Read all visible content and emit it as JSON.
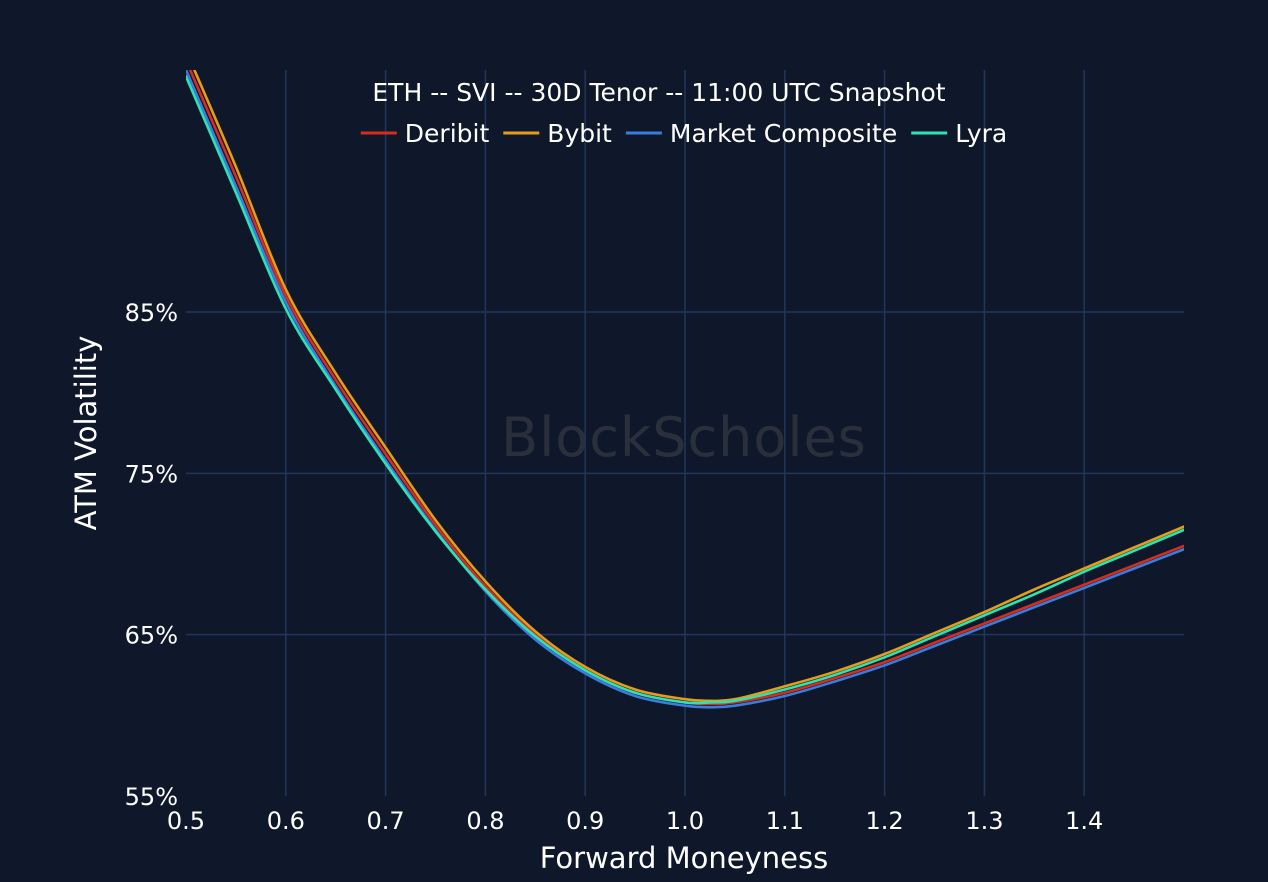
{
  "chart_data": {
    "type": "line",
    "title": "ETH -- SVI -- 30D Tenor -- 11:00 UTC Snapshot",
    "xlabel": "Forward Moneyness",
    "ylabel": "ATM Volatility",
    "watermark": "BlockScholes",
    "xlim": [
      0.5,
      1.5
    ],
    "ylim": [
      55,
      100
    ],
    "xticks": [
      0.5,
      0.6,
      0.7,
      0.8,
      0.9,
      1.0,
      1.1,
      1.2,
      1.3,
      1.4
    ],
    "xtick_labels": [
      "0.5",
      "0.6",
      "0.7",
      "0.8",
      "0.9",
      "1.0",
      "1.1",
      "1.2",
      "1.3",
      "1.4"
    ],
    "yticks": [
      55,
      65,
      75,
      85
    ],
    "ytick_labels": [
      "55%",
      "65%",
      "75%",
      "85%"
    ],
    "grid": true,
    "legend_position": "top-center",
    "x": [
      0.5,
      0.55,
      0.6,
      0.65,
      0.7,
      0.75,
      0.8,
      0.85,
      0.9,
      0.95,
      1.0,
      1.025,
      1.05,
      1.1,
      1.15,
      1.2,
      1.25,
      1.3,
      1.35,
      1.4,
      1.45,
      1.5
    ],
    "series": [
      {
        "name": "Deribit",
        "color": "#d62d1c",
        "values": [
          100.6,
          93.4,
          86.0,
          80.8,
          76.2,
          71.8,
          68.0,
          65.0,
          62.8,
          61.4,
          60.8,
          60.7,
          60.8,
          61.4,
          62.3,
          63.3,
          64.5,
          65.7,
          66.9,
          68.1,
          69.3,
          70.5
        ]
      },
      {
        "name": "Bybit",
        "color": "#e39d1a",
        "values": [
          101.2,
          94.0,
          86.4,
          81.2,
          76.6,
          72.1,
          68.3,
          65.2,
          63.0,
          61.6,
          61.0,
          60.9,
          61.0,
          61.8,
          62.7,
          63.8,
          65.1,
          66.4,
          67.8,
          69.1,
          70.4,
          71.7
        ]
      },
      {
        "name": "Market Composite",
        "color": "#3a7dde",
        "values": [
          100.0,
          92.8,
          85.6,
          80.4,
          75.8,
          71.5,
          67.7,
          64.7,
          62.6,
          61.2,
          60.6,
          60.5,
          60.6,
          61.2,
          62.1,
          63.1,
          64.3,
          65.5,
          66.7,
          67.9,
          69.1,
          70.3
        ]
      },
      {
        "name": "Lyra",
        "color": "#2ee3b3",
        "values": [
          99.6,
          92.4,
          85.2,
          80.2,
          75.6,
          71.4,
          67.8,
          64.9,
          62.8,
          61.4,
          60.8,
          60.8,
          60.9,
          61.6,
          62.5,
          63.6,
          64.9,
          66.2,
          67.5,
          68.9,
          70.2,
          71.5
        ]
      }
    ]
  }
}
